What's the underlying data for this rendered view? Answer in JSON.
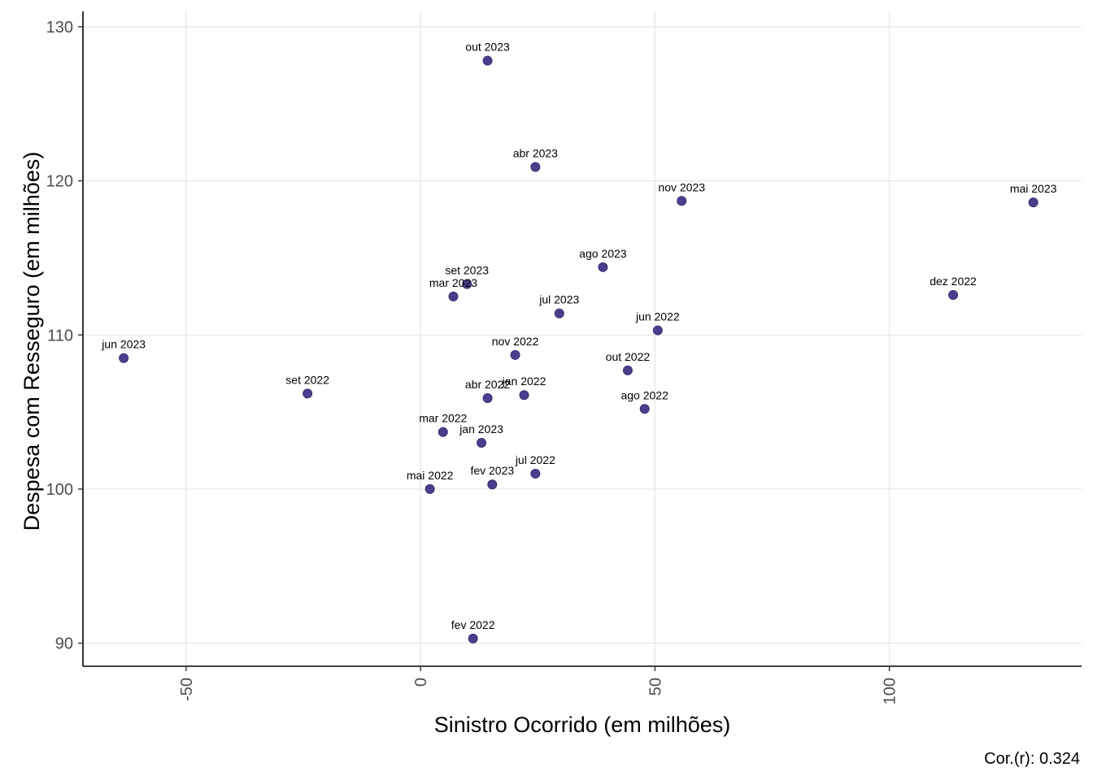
{
  "chart_data": {
    "type": "scatter",
    "xlabel": "Sinistro Ocorrido (em milhões)",
    "ylabel": "Despesa com Resseguro (em milhões)",
    "caption": "Cor.(r): 0.324",
    "xlim": [
      -72,
      141
    ],
    "ylim": [
      88.5,
      131
    ],
    "xticks": [
      -50,
      0,
      50,
      100
    ],
    "yticks": [
      90,
      100,
      110,
      120,
      130
    ],
    "grid": true,
    "point_color": "#4B3E8C",
    "points": [
      {
        "label": "out 2023",
        "x": 14.3,
        "y": 127.8
      },
      {
        "label": "abr 2023",
        "x": 24.5,
        "y": 120.9
      },
      {
        "label": "nov 2023",
        "x": 55.7,
        "y": 118.7
      },
      {
        "label": "mai 2023",
        "x": 130.7,
        "y": 118.6
      },
      {
        "label": "ago 2023",
        "x": 38.9,
        "y": 114.4
      },
      {
        "label": "set 2023",
        "x": 9.9,
        "y": 113.3
      },
      {
        "label": "mar 2023",
        "x": 7.0,
        "y": 112.5
      },
      {
        "label": "dez 2022",
        "x": 113.6,
        "y": 112.6
      },
      {
        "label": "jul 2023",
        "x": 29.6,
        "y": 111.4
      },
      {
        "label": "jun 2022",
        "x": 50.6,
        "y": 110.3
      },
      {
        "label": "jun 2023",
        "x": -63.3,
        "y": 108.5
      },
      {
        "label": "nov 2022",
        "x": 20.2,
        "y": 108.7
      },
      {
        "label": "out 2022",
        "x": 44.2,
        "y": 107.7
      },
      {
        "label": "set 2022",
        "x": -24.1,
        "y": 106.2
      },
      {
        "label": "jan 2022",
        "x": 22.1,
        "y": 106.1
      },
      {
        "label": "abr 2022",
        "x": 14.3,
        "y": 105.9
      },
      {
        "label": "ago 2022",
        "x": 47.8,
        "y": 105.2
      },
      {
        "label": "mar 2022",
        "x": 4.8,
        "y": 103.7
      },
      {
        "label": "jan 2023",
        "x": 13.0,
        "y": 103.0
      },
      {
        "label": "jul 2022",
        "x": 24.5,
        "y": 101.0
      },
      {
        "label": "fev 2023",
        "x": 15.3,
        "y": 100.3
      },
      {
        "label": "mai 2022",
        "x": 2.0,
        "y": 100.0
      },
      {
        "label": "fev 2022",
        "x": 11.2,
        "y": 90.3
      }
    ]
  }
}
